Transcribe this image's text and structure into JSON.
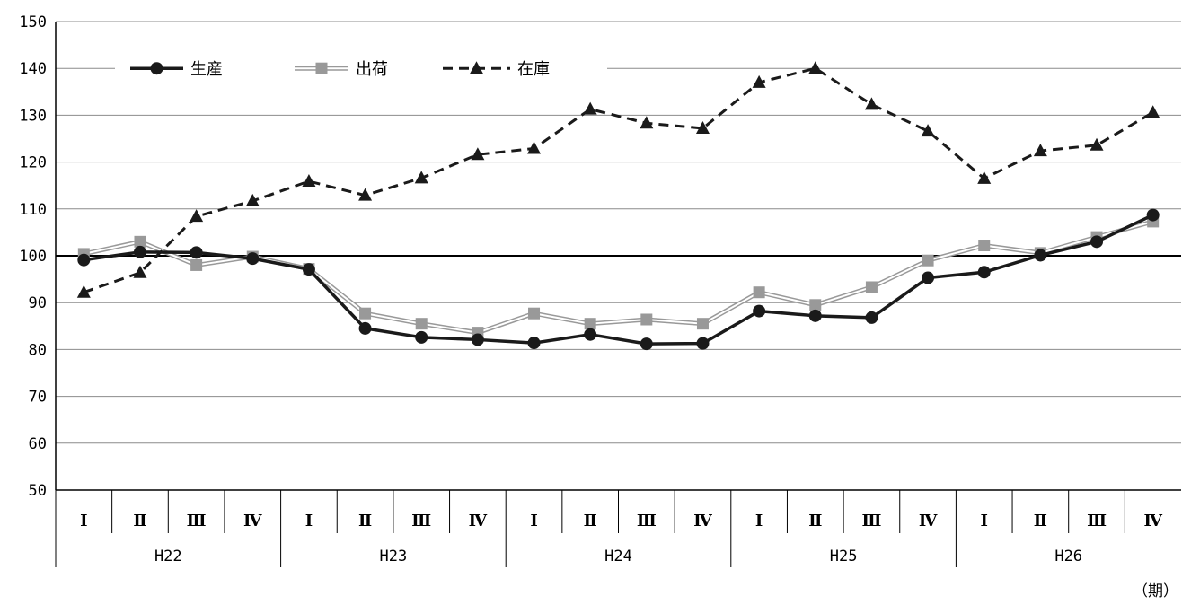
{
  "chart_data": {
    "type": "line",
    "ylim": [
      50,
      150
    ],
    "y_ticks": [
      50,
      60,
      70,
      80,
      90,
      100,
      110,
      120,
      130,
      140,
      150
    ],
    "reference_line": 100,
    "grid": "horizontal",
    "legend_position": "top-left",
    "categories": [
      "Ⅰ",
      "Ⅱ",
      "Ⅲ",
      "Ⅳ",
      "Ⅰ",
      "Ⅱ",
      "Ⅲ",
      "Ⅳ",
      "Ⅰ",
      "Ⅱ",
      "Ⅲ",
      "Ⅳ",
      "Ⅰ",
      "Ⅱ",
      "Ⅲ",
      "Ⅳ",
      "Ⅰ",
      "Ⅱ",
      "Ⅲ",
      "Ⅳ"
    ],
    "groups": [
      {
        "label": "H22",
        "count": 4
      },
      {
        "label": "H23",
        "count": 4
      },
      {
        "label": "H24",
        "count": 4
      },
      {
        "label": "H25",
        "count": 4
      },
      {
        "label": "H26",
        "count": 4
      }
    ],
    "x_unit": "（期）",
    "series": [
      {
        "name": "生産",
        "style": "solid-circle",
        "color": "#1a1a1a",
        "values": [
          99.1,
          100.8,
          100.7,
          99.4,
          97.1,
          84.5,
          82.6,
          82.1,
          81.4,
          83.2,
          81.2,
          81.3,
          88.2,
          87.2,
          86.8,
          95.3,
          96.5,
          100.1,
          103.0,
          108.7
        ]
      },
      {
        "name": "出荷",
        "style": "double-square",
        "color": "#999999",
        "values": [
          100.4,
          103.0,
          98.0,
          99.8,
          97.2,
          87.7,
          85.5,
          83.6,
          87.7,
          85.5,
          86.4,
          85.5,
          92.2,
          89.5,
          93.3,
          99.0,
          102.2,
          100.6,
          104.0,
          107.3
        ]
      },
      {
        "name": "在庫",
        "style": "dashed-triangle",
        "color": "#1a1a1a",
        "values": [
          92.2,
          96.4,
          108.4,
          111.7,
          115.9,
          112.9,
          116.6,
          121.6,
          122.9,
          131.3,
          128.3,
          127.2,
          137.0,
          140.0,
          132.3,
          126.6,
          116.5,
          122.4,
          123.6,
          130.6
        ]
      }
    ]
  }
}
